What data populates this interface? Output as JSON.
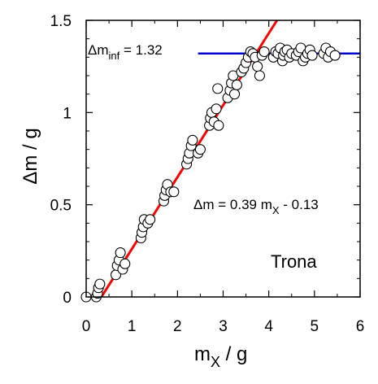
{
  "chart_data": {
    "type": "scatter",
    "title": "",
    "xlabel_base": "m",
    "xlabel_sub": "X",
    "xlabel_unit": " / g",
    "ylabel": "Δm / g",
    "xlim": [
      0,
      6
    ],
    "ylim": [
      0,
      1.5
    ],
    "x_ticks": [
      "0",
      "1",
      "2",
      "3",
      "4",
      "5",
      "6"
    ],
    "y_ticks": [
      "0",
      "0.5",
      "1",
      "1.5"
    ],
    "grid": false,
    "sample_label": "Trona",
    "fit": {
      "label_prefix": "Δm = 0.39 m",
      "label_sub": "X",
      "label_suffix": " - 0.13",
      "slope": 0.39,
      "intercept": -0.13,
      "color": "#ff0000"
    },
    "plateau": {
      "label_prefix": "Δm",
      "label_sub": "inf",
      "label_suffix": " = 1.32",
      "value": 1.32,
      "x_range": [
        2.45,
        6
      ],
      "color": "#0000cc"
    },
    "points": [
      {
        "x": 0.0,
        "y": 0.0
      },
      {
        "x": 0.22,
        "y": 0.0
      },
      {
        "x": 0.25,
        "y": 0.02
      },
      {
        "x": 0.27,
        "y": 0.05
      },
      {
        "x": 0.3,
        "y": 0.07
      },
      {
        "x": 0.65,
        "y": 0.12
      },
      {
        "x": 0.68,
        "y": 0.17
      },
      {
        "x": 0.72,
        "y": 0.2
      },
      {
        "x": 0.75,
        "y": 0.24
      },
      {
        "x": 0.8,
        "y": 0.15
      },
      {
        "x": 0.85,
        "y": 0.18
      },
      {
        "x": 1.2,
        "y": 0.32
      },
      {
        "x": 1.22,
        "y": 0.35
      },
      {
        "x": 1.25,
        "y": 0.38
      },
      {
        "x": 1.27,
        "y": 0.42
      },
      {
        "x": 1.35,
        "y": 0.4
      },
      {
        "x": 1.4,
        "y": 0.42
      },
      {
        "x": 1.7,
        "y": 0.52
      },
      {
        "x": 1.72,
        "y": 0.55
      },
      {
        "x": 1.75,
        "y": 0.58
      },
      {
        "x": 1.78,
        "y": 0.61
      },
      {
        "x": 1.85,
        "y": 0.57
      },
      {
        "x": 1.92,
        "y": 0.57
      },
      {
        "x": 2.2,
        "y": 0.72
      },
      {
        "x": 2.23,
        "y": 0.75
      },
      {
        "x": 2.26,
        "y": 0.78
      },
      {
        "x": 2.3,
        "y": 0.82
      },
      {
        "x": 2.33,
        "y": 0.85
      },
      {
        "x": 2.45,
        "y": 0.78
      },
      {
        "x": 2.5,
        "y": 0.8
      },
      {
        "x": 2.7,
        "y": 0.93
      },
      {
        "x": 2.72,
        "y": 0.97
      },
      {
        "x": 2.75,
        "y": 1.0
      },
      {
        "x": 2.8,
        "y": 0.95
      },
      {
        "x": 2.85,
        "y": 1.02
      },
      {
        "x": 2.9,
        "y": 0.93
      },
      {
        "x": 2.88,
        "y": 1.13
      },
      {
        "x": 3.1,
        "y": 1.08
      },
      {
        "x": 3.15,
        "y": 1.12
      },
      {
        "x": 3.18,
        "y": 1.16
      },
      {
        "x": 3.22,
        "y": 1.2
      },
      {
        "x": 3.25,
        "y": 1.1
      },
      {
        "x": 3.3,
        "y": 1.15
      },
      {
        "x": 3.4,
        "y": 1.22
      },
      {
        "x": 3.45,
        "y": 1.24
      },
      {
        "x": 3.5,
        "y": 1.27
      },
      {
        "x": 3.55,
        "y": 1.3
      },
      {
        "x": 3.6,
        "y": 1.33
      },
      {
        "x": 3.65,
        "y": 1.32
      },
      {
        "x": 3.7,
        "y": 1.3
      },
      {
        "x": 3.75,
        "y": 1.25
      },
      {
        "x": 3.8,
        "y": 1.2
      },
      {
        "x": 3.85,
        "y": 1.31
      },
      {
        "x": 3.9,
        "y": 1.33
      },
      {
        "x": 4.1,
        "y": 1.3
      },
      {
        "x": 4.15,
        "y": 1.33
      },
      {
        "x": 4.2,
        "y": 1.32
      },
      {
        "x": 4.25,
        "y": 1.35
      },
      {
        "x": 4.3,
        "y": 1.28
      },
      {
        "x": 4.32,
        "y": 1.31
      },
      {
        "x": 4.35,
        "y": 1.33
      },
      {
        "x": 4.4,
        "y": 1.34
      },
      {
        "x": 4.45,
        "y": 1.3
      },
      {
        "x": 4.5,
        "y": 1.32
      },
      {
        "x": 4.6,
        "y": 1.31
      },
      {
        "x": 4.65,
        "y": 1.33
      },
      {
        "x": 4.7,
        "y": 1.35
      },
      {
        "x": 4.75,
        "y": 1.28
      },
      {
        "x": 4.8,
        "y": 1.3
      },
      {
        "x": 4.85,
        "y": 1.32
      },
      {
        "x": 4.9,
        "y": 1.34
      },
      {
        "x": 4.95,
        "y": 1.31
      },
      {
        "x": 5.2,
        "y": 1.32
      },
      {
        "x": 5.25,
        "y": 1.35
      },
      {
        "x": 5.3,
        "y": 1.3
      },
      {
        "x": 5.35,
        "y": 1.33
      },
      {
        "x": 5.45,
        "y": 1.31
      }
    ]
  }
}
